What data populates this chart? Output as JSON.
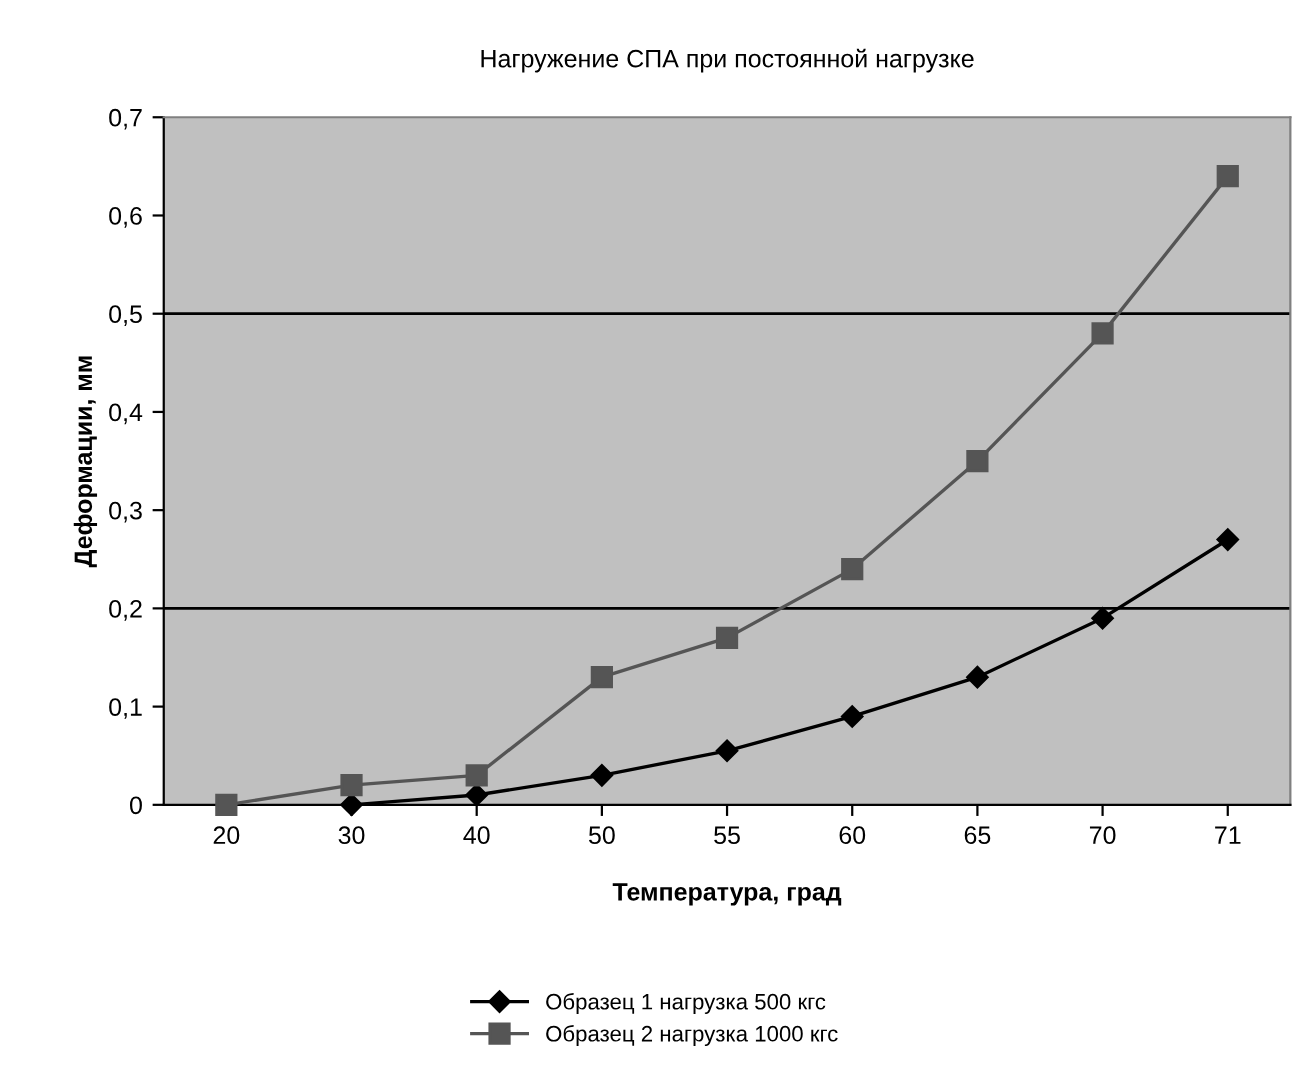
{
  "chart_data": {
    "type": "line",
    "title": "Нагружение СПА при постоянной нагрузке",
    "xlabel": "Температура, град",
    "ylabel": "Деформации, мм",
    "categories": [
      "20",
      "30",
      "40",
      "50",
      "55",
      "60",
      "65",
      "70",
      "71"
    ],
    "series": [
      {
        "name": "Образец 1 нагрузка 500 кгс",
        "color": "#000000",
        "marker": "diamond",
        "values": [
          null,
          0,
          0.01,
          0.03,
          0.055,
          0.09,
          0.13,
          0.19,
          0.27
        ]
      },
      {
        "name": "Образец 2 нагрузка 1000 кгс",
        "color": "#555555",
        "marker": "square",
        "values": [
          0,
          0.02,
          0.03,
          0.13,
          0.17,
          0.24,
          0.35,
          0.48,
          0.64
        ]
      }
    ],
    "ylim": [
      0,
      0.7
    ],
    "yticks": [
      {
        "value": 0,
        "label": "0"
      },
      {
        "value": 0.1,
        "label": "0,1"
      },
      {
        "value": 0.2,
        "label": "0,2"
      },
      {
        "value": 0.3,
        "label": "0,3"
      },
      {
        "value": 0.4,
        "label": "0,4"
      },
      {
        "value": 0.5,
        "label": "0,5"
      },
      {
        "value": 0.6,
        "label": "0,6"
      },
      {
        "value": 0.7,
        "label": "0,7"
      }
    ],
    "ref_lines": [
      {
        "axis": "y",
        "value": 0.2,
        "color": "#000000"
      },
      {
        "axis": "y",
        "value": 0.5,
        "color": "#000000"
      }
    ],
    "legend": "bottom",
    "grid": false
  }
}
